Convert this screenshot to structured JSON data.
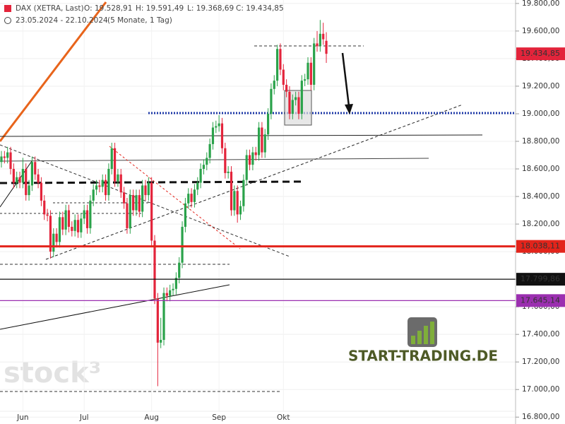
{
  "chart_data": {
    "type": "candlestick",
    "title": "DAX (XETRA, Last)",
    "ohlc_labels": [
      "O: 19.528,91",
      "H: 19.591,49",
      "L: 19.368,69",
      "C: 19.434,85"
    ],
    "period": "23.05.2024 - 22.10.2024",
    "period_note": "(5 Monate, 1 Tag)",
    "watermark": "stock³",
    "logo_text": "START-TRADING.DE",
    "up_color": "#2aa24a",
    "down_color": "#e3243b",
    "categories": [
      null,
      null,
      null,
      null,
      null,
      null,
      null,
      "Jun",
      null,
      null,
      null,
      null,
      null,
      null,
      null,
      null,
      null,
      null,
      null,
      null,
      null,
      null,
      null,
      null,
      null,
      null,
      null,
      "Jul",
      null,
      null,
      null,
      null,
      null,
      null,
      null,
      null,
      null,
      null,
      null,
      null,
      null,
      null,
      null,
      null,
      null,
      null,
      null,
      null,
      null,
      "Aug",
      null,
      null,
      null,
      null,
      null,
      null,
      null,
      null,
      null,
      null,
      null,
      null,
      null,
      null,
      null,
      null,
      null,
      null,
      null,
      null,
      null,
      "Sep",
      null,
      null,
      null,
      null,
      null,
      null,
      null,
      null,
      null,
      null,
      null,
      null,
      null,
      null,
      null,
      null,
      null,
      null,
      null,
      null,
      "Okt",
      null,
      null,
      null,
      null,
      null,
      null,
      null,
      null,
      null,
      null,
      null,
      null,
      null,
      null
    ],
    "open": [
      18650,
      18690,
      18680,
      18720,
      18600,
      18500,
      18540,
      18500,
      18600,
      18410,
      18480,
      18650,
      18560,
      18500,
      18370,
      18270,
      18260,
      18000,
      18130,
      18070,
      18250,
      18160,
      18300,
      18180,
      18150,
      18230,
      18140,
      18240,
      18300,
      18170,
      18370,
      18450,
      18480,
      18470,
      18520,
      18410,
      18600,
      18750,
      18510,
      18560,
      18430,
      18350,
      18170,
      18410,
      18300,
      18410,
      18290,
      18480,
      18410,
      18500,
      18080,
      17660,
      17340,
      17360,
      17700,
      17680,
      17720,
      17730,
      17810,
      17920,
      18180,
      18350,
      18420,
      18360,
      18450,
      18500,
      18600,
      18630,
      18680,
      18780,
      18900,
      18910,
      18930,
      18750,
      18570,
      18580,
      18300,
      18440,
      18270,
      18330,
      18520,
      18700,
      18630,
      18720,
      18700,
      18900,
      18720,
      18850,
      19000,
      19180,
      19240,
      19470,
      19320,
      19210,
      19160,
      19000,
      19100,
      19120,
      19000,
      19240,
      19250,
      19370,
      19210,
      19510,
      19490,
      19580,
      19528.91
    ],
    "high": [
      18730,
      18730,
      18760,
      18760,
      18640,
      18580,
      18580,
      18680,
      18640,
      18520,
      18690,
      18690,
      18600,
      18540,
      18410,
      18310,
      18300,
      18170,
      18170,
      18290,
      18290,
      18340,
      18340,
      18220,
      18270,
      18270,
      18280,
      18340,
      18340,
      18410,
      18490,
      18520,
      18520,
      18560,
      18560,
      18640,
      18790,
      18790,
      18600,
      18600,
      18470,
      18390,
      18450,
      18450,
      18450,
      18450,
      18520,
      18520,
      18540,
      18540,
      18120,
      17700,
      17520,
      17740,
      17740,
      17760,
      17770,
      17850,
      17960,
      18220,
      18390,
      18460,
      18460,
      18490,
      18540,
      18640,
      18670,
      18720,
      18820,
      18940,
      18950,
      18990,
      18970,
      18790,
      18620,
      18620,
      18480,
      18480,
      18370,
      18560,
      18740,
      18740,
      18760,
      18760,
      18940,
      18940,
      18890,
      19040,
      19220,
      19280,
      19500,
      19510,
      19360,
      19250,
      19200,
      19140,
      19160,
      19160,
      19280,
      19290,
      19410,
      19410,
      19550,
      19600,
      19680,
      19660,
      19591.49
    ],
    "low": [
      18610,
      18640,
      18640,
      18560,
      18460,
      18460,
      18460,
      18460,
      18370,
      18370,
      18440,
      18520,
      18460,
      18330,
      18230,
      18220,
      17950,
      17960,
      18030,
      18030,
      18120,
      18120,
      18140,
      18110,
      18110,
      18100,
      18100,
      18200,
      18130,
      18130,
      18330,
      18410,
      18430,
      18430,
      18370,
      18370,
      18560,
      18470,
      18470,
      18390,
      18310,
      18130,
      18130,
      18260,
      18260,
      18250,
      18250,
      18370,
      18370,
      18040,
      17620,
      17024,
      17300,
      17320,
      17640,
      17640,
      17680,
      17690,
      17770,
      17880,
      18140,
      18310,
      18320,
      18320,
      18410,
      18460,
      18560,
      18590,
      18640,
      18740,
      18860,
      18870,
      18710,
      18530,
      18530,
      18260,
      18260,
      18210,
      18230,
      18290,
      18480,
      18590,
      18590,
      18660,
      18660,
      18680,
      18680,
      18810,
      18960,
      19140,
      19200,
      19280,
      19170,
      19120,
      18960,
      18960,
      19060,
      18960,
      18960,
      19200,
      19210,
      19170,
      19170,
      19450,
      19450,
      19500,
      19368.69
    ],
    "close": [
      18690,
      18680,
      18720,
      18600,
      18500,
      18540,
      18500,
      18600,
      18410,
      18480,
      18650,
      18560,
      18500,
      18370,
      18270,
      18260,
      18000,
      18130,
      18070,
      18250,
      18160,
      18300,
      18180,
      18150,
      18230,
      18140,
      18240,
      18300,
      18170,
      18370,
      18450,
      18480,
      18470,
      18520,
      18410,
      18600,
      18750,
      18510,
      18560,
      18430,
      18350,
      18170,
      18410,
      18300,
      18410,
      18290,
      18480,
      18410,
      18500,
      18080,
      17660,
      17340,
      17360,
      17700,
      17680,
      17720,
      17730,
      17810,
      17920,
      18180,
      18350,
      18420,
      18360,
      18450,
      18500,
      18600,
      18630,
      18680,
      18780,
      18900,
      18910,
      18930,
      18750,
      18570,
      18580,
      18300,
      18440,
      18270,
      18330,
      18520,
      18700,
      18630,
      18720,
      18700,
      18900,
      18720,
      18850,
      19000,
      19180,
      19240,
      19470,
      19320,
      19210,
      19160,
      19000,
      19100,
      19120,
      19000,
      19240,
      19250,
      19370,
      19210,
      19510,
      19490,
      19580,
      19540,
      19434.85
    ],
    "ylim": [
      16750,
      19825
    ],
    "yticks": [
      {
        "value": 16800,
        "label": "16.800,00"
      },
      {
        "value": 17000,
        "label": "17.000,00"
      },
      {
        "value": 17200,
        "label": "17.200,00"
      },
      {
        "value": 17400,
        "label": "17.400,00"
      },
      {
        "value": 17600,
        "label": "17.600,00"
      },
      {
        "value": 17800,
        "label": "17.800,00"
      },
      {
        "value": 18000,
        "label": "18.000,00"
      },
      {
        "value": 18200,
        "label": "18.200,00"
      },
      {
        "value": 18400,
        "label": "18.400,00"
      },
      {
        "value": 18600,
        "label": "18.600,00"
      },
      {
        "value": 18800,
        "label": "18.800,00"
      },
      {
        "value": 19000,
        "label": "19.000,00"
      },
      {
        "value": 19200,
        "label": "19.200,00"
      },
      {
        "value": 19400,
        "label": "19.400,00"
      },
      {
        "value": 19600,
        "label": "19.600,00"
      },
      {
        "value": 19800,
        "label": "19.800,00"
      }
    ],
    "price_lines": [
      {
        "value": 18038.11,
        "label": "18.038,11",
        "color": "#e3241b"
      },
      {
        "value": 17799.86,
        "label": "17.799,86",
        "color": "#111111"
      },
      {
        "value": 17645.14,
        "label": "17.645,14",
        "color": "#9b2fb0"
      }
    ],
    "current_price": {
      "value": 19434.85,
      "label": "19.434,85",
      "color": "#e3243b"
    }
  }
}
